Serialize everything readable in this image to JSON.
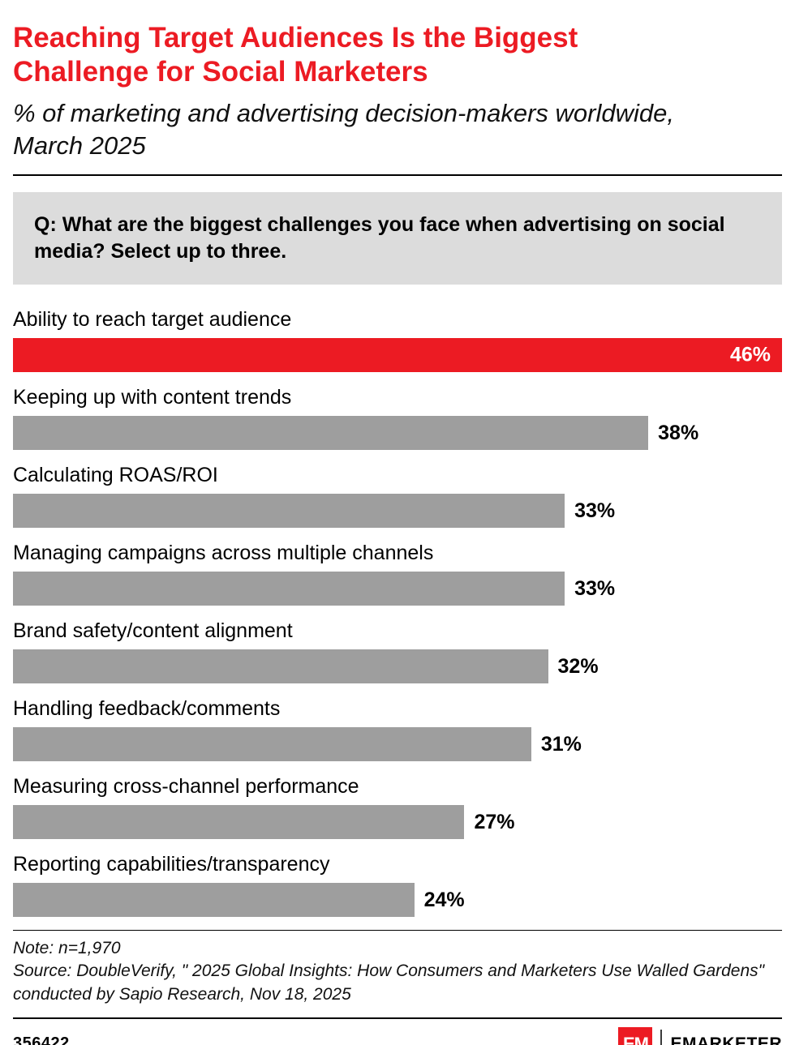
{
  "chart_data": {
    "type": "bar",
    "orientation": "horizontal",
    "title": "Reaching Target Audiences Is the Biggest Challenge for Social Marketers",
    "subtitle": "% of marketing and advertising decision-makers worldwide, March 2025",
    "question": "Q: What are the biggest challenges you face when advertising on social media? Select up to three.",
    "unit": "%",
    "xlim": [
      0,
      46
    ],
    "grid": false,
    "legend": false,
    "categories": [
      "Ability to reach target audience",
      "Keeping up with content trends",
      "Calculating ROAS/ROI",
      "Managing campaigns across multiple channels",
      "Brand safety/content alignment",
      "Handling feedback/comments",
      "Measuring cross-channel performance",
      "Reporting capabilities/transparency"
    ],
    "values": [
      46,
      38,
      33,
      33,
      32,
      31,
      27,
      24
    ],
    "rows": [
      {
        "label": "Ability to reach target audience",
        "value": 46,
        "value_label": "46%",
        "highlight": true
      },
      {
        "label": "Keeping up with content trends",
        "value": 38,
        "value_label": "38%",
        "highlight": false
      },
      {
        "label": "Calculating ROAS/ROI",
        "value": 33,
        "value_label": "33%",
        "highlight": false
      },
      {
        "label": "Managing campaigns across multiple channels",
        "value": 33,
        "value_label": "33%",
        "highlight": false
      },
      {
        "label": "Brand safety/content alignment",
        "value": 32,
        "value_label": "32%",
        "highlight": false
      },
      {
        "label": "Handling feedback/comments",
        "value": 31,
        "value_label": "31%",
        "highlight": false
      },
      {
        "label": "Measuring cross-channel performance",
        "value": 27,
        "value_label": "27%",
        "highlight": false
      },
      {
        "label": "Reporting capabilities/transparency",
        "value": 24,
        "value_label": "24%",
        "highlight": false
      }
    ]
  },
  "footer": {
    "note": "Note: n=1,970",
    "source": "Source: DoubleVerify, \" 2025 Global Insights: How Consumers and Marketers Use Walled Gardens\" conducted by Sapio Research, Nov 18, 2025",
    "chart_id": "356422",
    "brand": "EMARKETER",
    "logo_text": "EM"
  },
  "colors": {
    "accent_red": "#EC1B23",
    "bar_gray": "#9E9E9E",
    "question_bg": "#DCDCDC",
    "text": "#000000",
    "value_on_accent": "#FFFFFF"
  }
}
